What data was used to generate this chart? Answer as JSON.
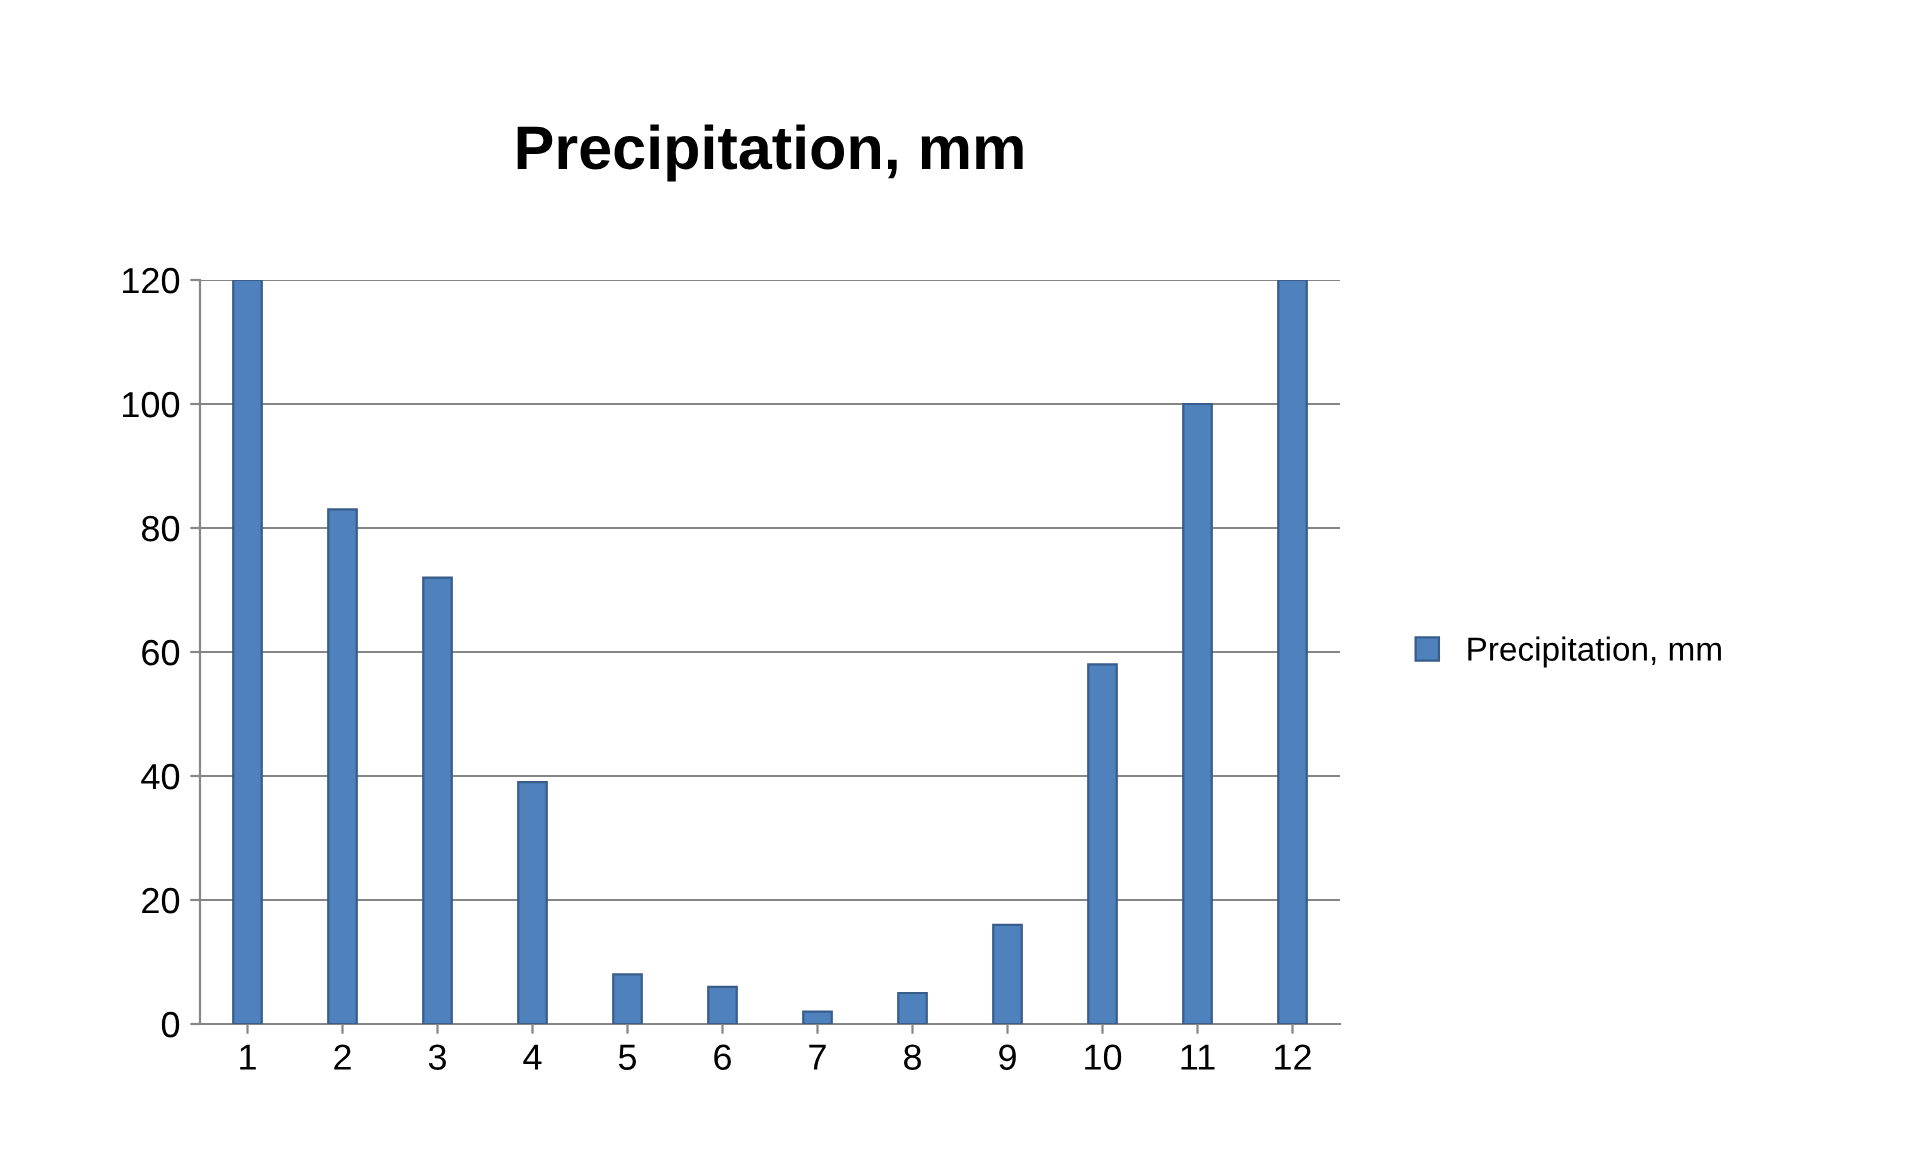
{
  "chart_data": {
    "type": "bar",
    "title": "Precipitation, mm",
    "categories": [
      "1",
      "2",
      "3",
      "4",
      "5",
      "6",
      "7",
      "8",
      "9",
      "10",
      "11",
      "12"
    ],
    "series": [
      {
        "name": "Precipitation, mm",
        "color": "#4f81bd",
        "values": [
          120,
          83,
          72,
          39,
          8,
          6,
          2,
          5,
          16,
          58,
          100,
          120
        ]
      }
    ],
    "ylim": [
      0,
      120
    ],
    "yticks": [
      0,
      20,
      40,
      60,
      80,
      100,
      120
    ],
    "grid": "y",
    "legend": "right"
  }
}
